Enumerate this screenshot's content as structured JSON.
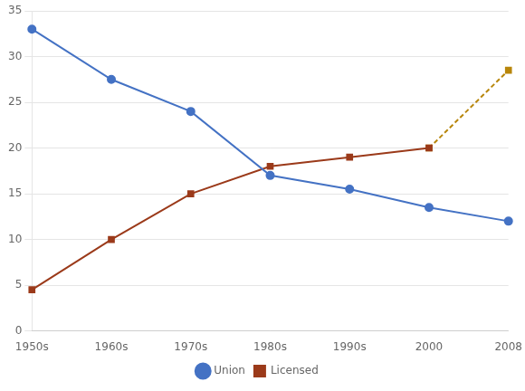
{
  "chart_data": {
    "type": "line",
    "categories": [
      "1950s",
      "1960s",
      "1970s",
      "1980s",
      "1990s",
      "2000",
      "2008"
    ],
    "series": [
      {
        "name": "Union",
        "color": "#4472C4",
        "marker": "circle",
        "line_style": "solid",
        "values": [
          33,
          27.5,
          24,
          17,
          15.5,
          13.5,
          12
        ]
      },
      {
        "name": "Licensed",
        "color": "#9B3A1A",
        "marker": "square",
        "line_style": "solid",
        "values": [
          4.5,
          10,
          15,
          18,
          19,
          20,
          null
        ]
      },
      {
        "color": "#B8860B",
        "marker": "square",
        "line_style": "dashed",
        "values": [
          null,
          null,
          null,
          null,
          null,
          20,
          28.5
        ]
      }
    ],
    "ylim": [
      0,
      35
    ],
    "yticks": [
      0,
      5,
      10,
      15,
      20,
      25,
      30,
      35
    ],
    "grid": "y",
    "legend": "bottom"
  }
}
